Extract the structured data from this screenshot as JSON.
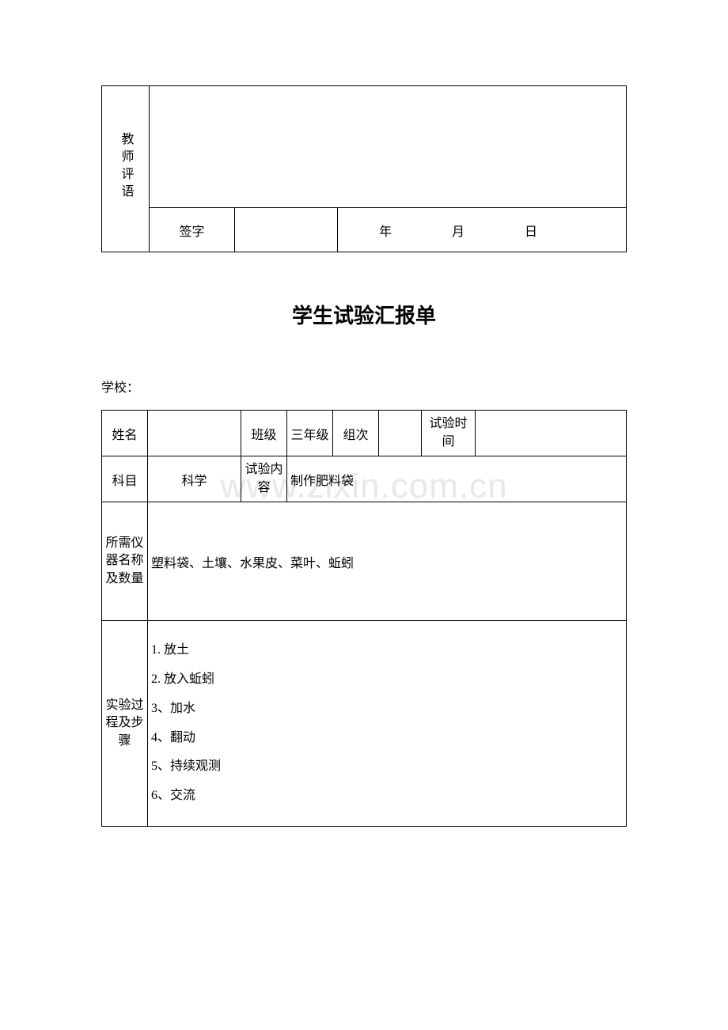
{
  "table1": {
    "teacher_comment_label": "教师评语",
    "signature_label": "签字",
    "date_label": "年　月　日"
  },
  "title": "学生试验汇报单",
  "school_label": "学校：",
  "table2": {
    "row1": {
      "name_label": "姓名",
      "class_label": "班级",
      "grade_value": "三年级",
      "group_label": "组次",
      "time_label": "试验时间"
    },
    "row2": {
      "subject_label": "科目",
      "subject_value": "科学",
      "content_label": "试验内容",
      "content_value": "制作肥料袋"
    },
    "row3": {
      "equipment_label": "所需仪器名称及数量",
      "equipment_value": "塑料袋、土壤、水果皮、菜叶、蚯蚓"
    },
    "row4": {
      "steps_label": "实验过程及步骤",
      "step1": "1. 放土",
      "step2": "2. 放入蚯蚓",
      "step3": "3、加水",
      "step4": "4、翻动",
      "step5": "5、持续观测",
      "step6": "6、交流"
    }
  },
  "watermark": "www.zixin.com.cn"
}
